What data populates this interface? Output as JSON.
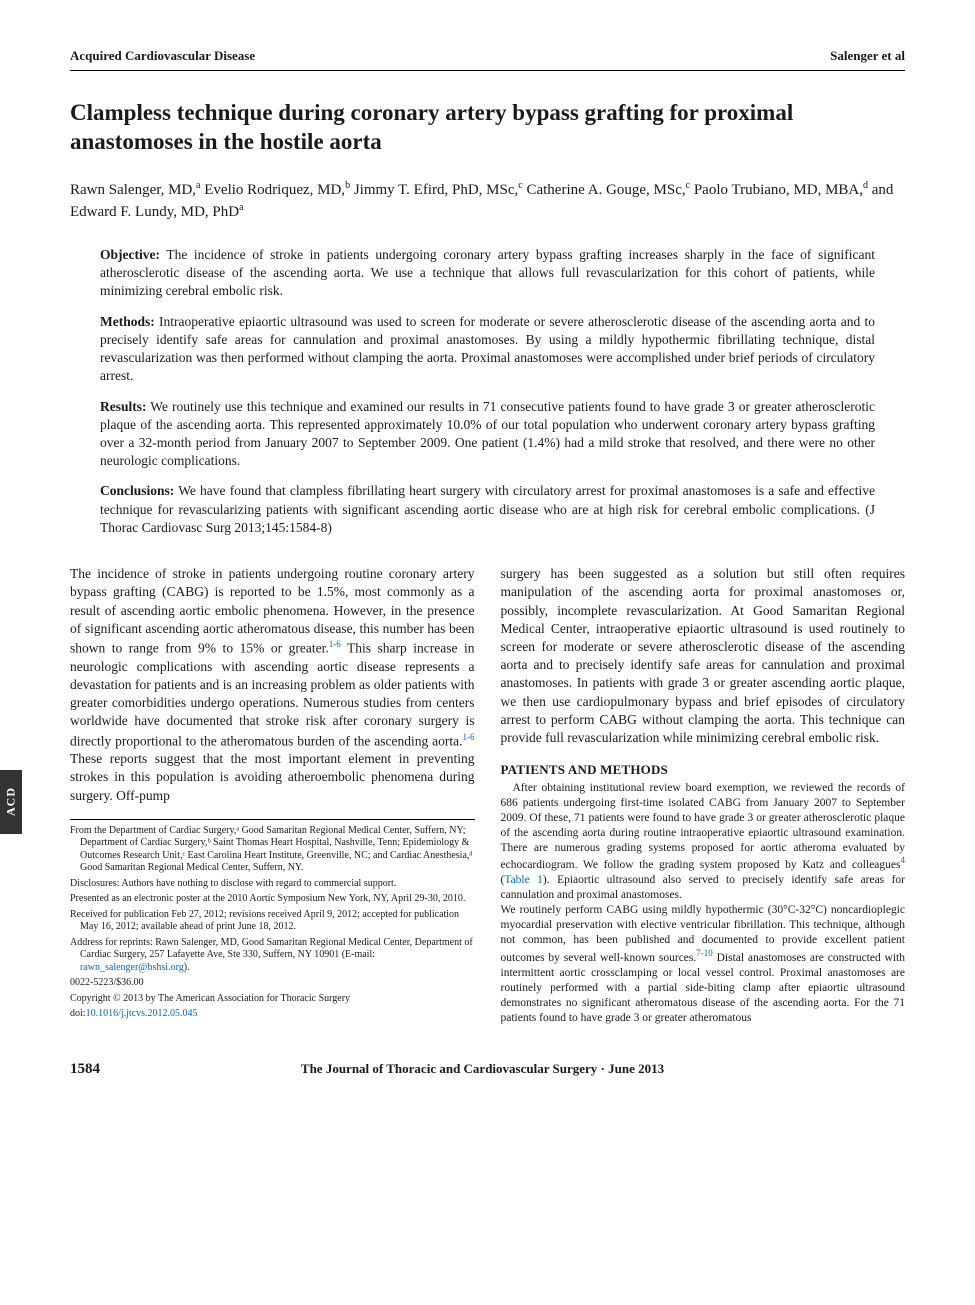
{
  "header": {
    "left": "Acquired Cardiovascular Disease",
    "right": "Salenger et al"
  },
  "title": "Clampless technique during coronary artery bypass grafting for proximal anastomoses in the hostile aorta",
  "authors_html": "Rawn Salenger, MD,<sup>a</sup> Evelio Rodriquez, MD,<sup>b</sup> Jimmy T. Efird, PhD, MSc,<sup>c</sup> Catherine A. Gouge, MSc,<sup>c</sup> Paolo Trubiano, MD, MBA,<sup>d</sup> and Edward F. Lundy, MD, PhD<sup>a</sup>",
  "abstract": {
    "objective": {
      "label": "Objective:",
      "text": " The incidence of stroke in patients undergoing coronary artery bypass grafting increases sharply in the face of significant atherosclerotic disease of the ascending aorta. We use a technique that allows full revascularization for this cohort of patients, while minimizing cerebral embolic risk."
    },
    "methods": {
      "label": "Methods:",
      "text": " Intraoperative epiaortic ultrasound was used to screen for moderate or severe atherosclerotic disease of the ascending aorta and to precisely identify safe areas for cannulation and proximal anastomoses. By using a mildly hypothermic fibrillating technique, distal revascularization was then performed without clamping the aorta. Proximal anastomoses were accomplished under brief periods of circulatory arrest."
    },
    "results": {
      "label": "Results:",
      "text": " We routinely use this technique and examined our results in 71 consecutive patients found to have grade 3 or greater atherosclerotic plaque of the ascending aorta. This represented approximately 10.0% of our total population who underwent coronary artery bypass grafting over a 32-month period from January 2007 to September 2009. One patient (1.4%) had a mild stroke that resolved, and there were no other neurologic complications."
    },
    "conclusions": {
      "label": "Conclusions:",
      "text": " We have found that clampless fibrillating heart surgery with circulatory arrest for proximal anastomoses is a safe and effective technique for revascularizing patients with significant ascending aortic disease who are at high risk for cerebral embolic complications. (J Thorac Cardiovasc Surg 2013;145:1584-8)"
    }
  },
  "body": {
    "intro_col1": "The incidence of stroke in patients undergoing routine coronary artery bypass grafting (CABG) is reported to be 1.5%, most commonly as a result of ascending aortic embolic phenomena. However, in the presence of significant ascending aortic atheromatous disease, this number has been shown to range from 9% to 15% or greater.",
    "ref1": "1-6",
    "intro_col1b": " This sharp increase in neurologic complications with ascending aortic disease represents a devastation for patients and is an increasing problem as older patients with greater comorbidities undergo operations. Numerous studies from centers worldwide have documented that stroke risk after coronary surgery is directly proportional to the atheromatous burden of the ascending aorta.",
    "ref2": "1-6",
    "intro_col1c": " These reports suggest that the most important element in preventing strokes in this population is avoiding atheroembolic phenomena during surgery. Off-pump",
    "intro_col2": "surgery has been suggested as a solution but still often requires manipulation of the ascending aorta for proximal anastomoses or, possibly, incomplete revascularization. At Good Samaritan Regional Medical Center, intraoperative epiaortic ultrasound is used routinely to screen for moderate or severe atherosclerotic disease of the ascending aorta and to precisely identify safe areas for cannulation and proximal anastomoses. In patients with grade 3 or greater ascending aortic plaque, we then use cardiopulmonary bypass and brief episodes of circulatory arrest to perform CABG without clamping the aorta. This technique can provide full revascularization while minimizing cerebral embolic risk."
  },
  "methods": {
    "heading": "PATIENTS AND METHODS",
    "p1a": "After obtaining institutional review board exemption, we reviewed the records of 686 patients undergoing first-time isolated CABG from January 2007 to September 2009. Of these, 71 patients were found to have grade 3 or greater atherosclerotic plaque of the ascending aorta during routine intraoperative epiaortic ultrasound examination. There are numerous grading systems proposed for aortic atheroma evaluated by echocardiogram. We follow the grading system proposed by Katz and colleagues",
    "ref3": "4",
    "p1b": " (",
    "table_link": "Table 1",
    "p1c": "). Epiaortic ultrasound also served to precisely identify safe areas for cannulation and proximal anastomoses.",
    "p2a": "We routinely perform CABG using mildly hypothermic (30°C-32°C) noncardioplegic myocardial preservation with elective ventricular fibrillation. This technique, although not common, has been published and documented to provide excellent patient outcomes by several well-known sources.",
    "ref4": "7-10",
    "p2b": " Distal anastomoses are constructed with intermittent aortic crossclamping or local vessel control. Proximal anastomoses are routinely performed with a partial side-biting clamp after epiaortic ultrasound demonstrates no significant atheromatous disease of the ascending aorta. For the 71 patients found to have grade 3 or greater atheromatous"
  },
  "footnotes": {
    "affil": "From the Department of Cardiac Surgery,ᵃ Good Samaritan Regional Medical Center, Suffern, NY; Department of Cardiac Surgery,ᵇ Saint Thomas Heart Hospital, Nashville, Tenn; Epidemiology & Outcomes Research Unit,ᶜ East Carolina Heart Institute, Greenville, NC; and Cardiac Anesthesia,ᵈ Good Samaritan Regional Medical Center, Suffern, NY.",
    "disclosures": "Disclosures: Authors have nothing to disclose with regard to commercial support.",
    "presented": "Presented as an electronic poster at the 2010 Aortic Symposium New York, NY, April 29-30, 2010.",
    "received": "Received for publication Feb 27, 2012; revisions received April 9, 2012; accepted for publication May 16, 2012; available ahead of print June 18, 2012.",
    "reprints_a": "Address for reprints: Rawn Salenger, MD, Good Samaritan Regional Medical Center, Department of Cardiac Surgery, 257 Lafayette Ave, Ste 330, Suffern, NY 10901 (E-mail: ",
    "email": "rawn_salenger@bshsi.org",
    "reprints_b": ").",
    "issn": "0022-5223/$36.00",
    "copyright": "Copyright © 2013 by The American Association for Thoracic Surgery",
    "doi_label": "doi:",
    "doi": "10.1016/j.jtcvs.2012.05.045"
  },
  "side_tab": "ACD",
  "footer": {
    "page": "1584",
    "journal": "The Journal of Thoracic and Cardiovascular Surgery · June 2013"
  },
  "colors": {
    "link": "#0066cc",
    "tab_bg": "#333333",
    "text": "#1a1a1a"
  }
}
